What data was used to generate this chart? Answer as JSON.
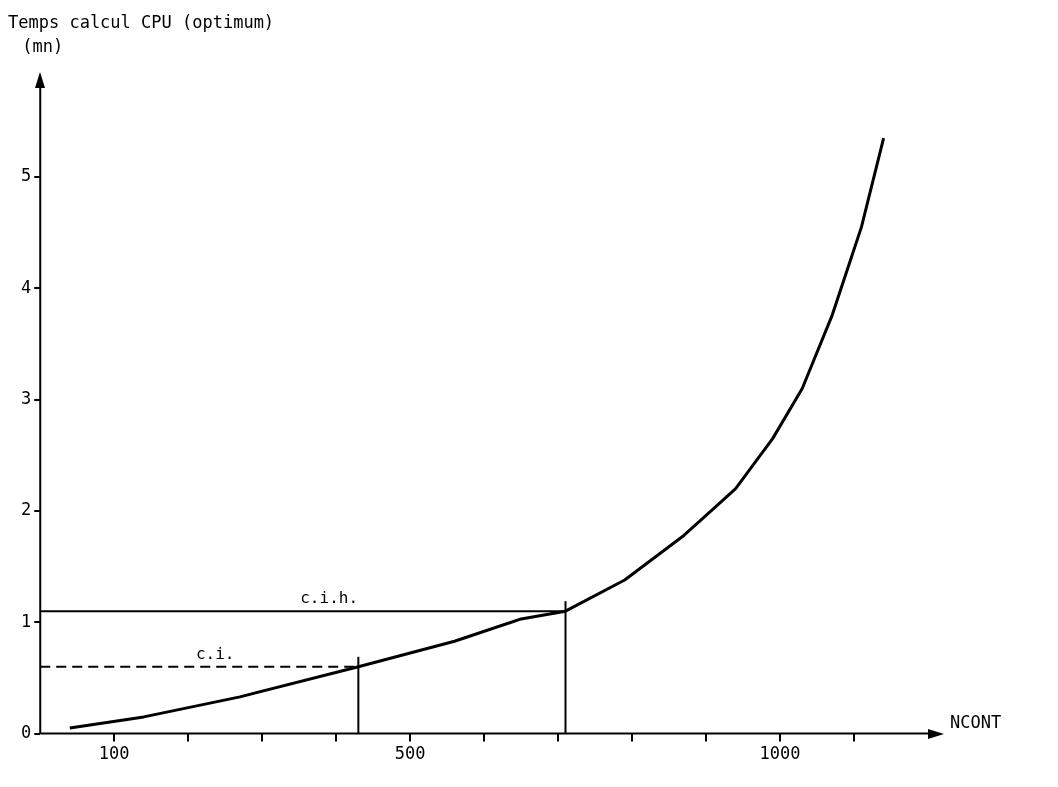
{
  "chart_data": {
    "type": "line",
    "title": "Temps calcul CPU (optimum)",
    "ylabel": "(mn)",
    "xlabel": "NCONT",
    "x": [
      40,
      140,
      270,
      430,
      560,
      650,
      710,
      790,
      870,
      940,
      990,
      1030,
      1070,
      1110,
      1140
    ],
    "series": [
      {
        "color": "#000000",
        "values": [
          0.05,
          0.15,
          0.33,
          0.6,
          0.83,
          1.03,
          1.1,
          1.38,
          1.78,
          2.2,
          2.65,
          3.1,
          3.75,
          4.55,
          5.35
        ]
      }
    ],
    "xlim": [
      0,
      1200
    ],
    "ylim": [
      0,
      5.8
    ],
    "xticks": [
      100,
      {
        "value": 200,
        "label": null
      },
      {
        "value": 300,
        "label": null
      },
      {
        "value": 400,
        "label": null
      },
      500,
      {
        "value": 600,
        "label": null
      },
      {
        "value": 700,
        "label": null
      },
      {
        "value": 800,
        "label": null
      },
      {
        "value": 900,
        "label": null
      },
      1000,
      {
        "value": 1100,
        "label": null
      }
    ],
    "yticks": [
      0,
      1,
      2,
      3,
      4,
      5
    ],
    "ref_lines": [
      {
        "axis": "y",
        "value": 1.1,
        "label": "c.i.h.",
        "line_style": "solid"
      },
      {
        "axis": "y",
        "value": 0.6,
        "label": "c.i.",
        "line_style": "dashed"
      },
      {
        "axis": "x",
        "value": 710
      },
      {
        "axis": "x",
        "value": 430
      }
    ],
    "grid": false,
    "legend": false,
    "marker": "none",
    "line_style": "solid"
  }
}
